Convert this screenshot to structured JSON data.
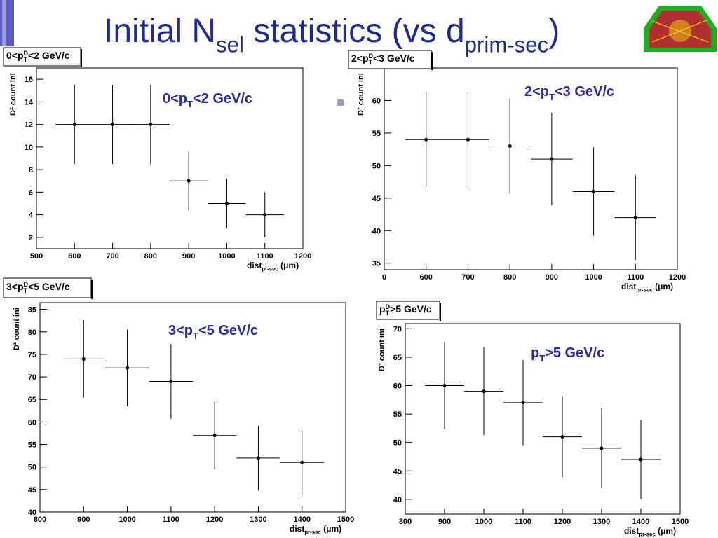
{
  "slide_title": [
    "Initial N",
    "sel",
    " statistics (vs d",
    "prim-sec",
    ")"
  ],
  "chart_data": [
    {
      "type": "errorbar",
      "title": [
        "0<p",
        "T",
        "D",
        "<2 GeV/c"
      ],
      "annotation": [
        "0<p",
        "T",
        "<2 GeV/c"
      ],
      "xlabel": [
        "dist",
        "pr-sec",
        " (μm)"
      ],
      "ylabel": [
        "D",
        "±",
        " count ini"
      ],
      "x": [
        600,
        700,
        800,
        900,
        1000,
        1100
      ],
      "xerr": 50,
      "values": [
        12,
        12,
        12,
        7,
        5,
        4
      ],
      "errors": [
        3.5,
        3.5,
        3.5,
        2.6,
        2.2,
        2
      ],
      "xlim": [
        500,
        1200
      ],
      "xticks": [
        500,
        600,
        700,
        800,
        900,
        1000,
        1100,
        1200
      ],
      "ylim": [
        1,
        17
      ],
      "yticks": [
        2,
        4,
        6,
        8,
        10,
        12,
        14,
        16
      ]
    },
    {
      "type": "errorbar",
      "title": [
        "2<p",
        "T",
        "D",
        "<3 GeV/c"
      ],
      "annotation": [
        "2<p",
        "T",
        "<3 GeV/c"
      ],
      "xlabel": [
        "dist",
        "pr-sec",
        " (μm)"
      ],
      "ylabel": [
        "D",
        "±",
        " count ini"
      ],
      "x": [
        600,
        700,
        800,
        900,
        1000,
        1100
      ],
      "xerr": 50,
      "values": [
        54,
        54,
        53,
        51,
        46,
        42
      ],
      "errors": [
        7.3,
        7.3,
        7.3,
        7.1,
        6.8,
        6.5
      ],
      "xlim": [
        500,
        1200
      ],
      "xticks": [
        {
          "value": 500,
          "label": "0"
        },
        600,
        700,
        800,
        900,
        1000,
        1100,
        1200
      ],
      "ylim": [
        34,
        65
      ],
      "yticks": [
        35,
        40,
        45,
        50,
        55,
        60
      ]
    },
    {
      "type": "errorbar",
      "title": [
        "3<p",
        "T",
        "D",
        "<5 GeV/c"
      ],
      "annotation": [
        "3<p",
        "T",
        "<5 GeV/c"
      ],
      "xlabel": [
        "dist",
        "pr-sec",
        " (μm)"
      ],
      "ylabel": [
        "D",
        "±",
        " count ini"
      ],
      "x": [
        900,
        1000,
        1100,
        1200,
        1300,
        1400
      ],
      "xerr": 50,
      "values": [
        74,
        72,
        69,
        57,
        52,
        51
      ],
      "errors": [
        8.6,
        8.5,
        8.3,
        7.5,
        7.2,
        7.1
      ],
      "xlim": [
        800,
        1500
      ],
      "xticks": [
        800,
        900,
        1000,
        1100,
        1200,
        1300,
        1400,
        1500
      ],
      "ylim": [
        40,
        86.5
      ],
      "yticks": [
        40,
        45,
        50,
        55,
        60,
        65,
        70,
        75,
        80,
        85
      ]
    },
    {
      "type": "errorbar",
      "title": [
        "p",
        "T",
        "D",
        ">5 GeV/c"
      ],
      "annotation": [
        "p",
        "T",
        ">5 GeV/c"
      ],
      "xlabel": [
        "dist",
        "pr-sec",
        " (μm)"
      ],
      "ylabel": [
        "D",
        "±",
        " count ini"
      ],
      "x": [
        900,
        1000,
        1100,
        1200,
        1300,
        1400
      ],
      "xerr": 50,
      "values": [
        60,
        59,
        57,
        51,
        49,
        47
      ],
      "errors": [
        7.7,
        7.7,
        7.5,
        7.1,
        7,
        6.9
      ],
      "xlim": [
        800,
        1500
      ],
      "xticks": [
        800,
        900,
        1000,
        1100,
        1200,
        1300,
        1400,
        1500
      ],
      "ylim": [
        37.4,
        70.9
      ],
      "yticks": [
        40,
        45,
        50,
        55,
        60,
        65,
        70
      ]
    }
  ]
}
